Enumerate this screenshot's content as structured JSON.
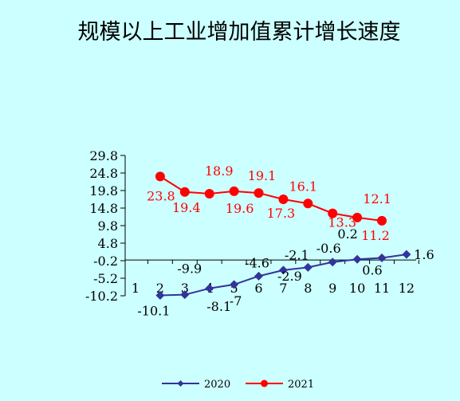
{
  "chart_data": {
    "type": "line",
    "title": "规模以上工业增加值累计增长速度",
    "categories": [
      "1",
      "2",
      "3",
      "4",
      "5",
      "6",
      "7",
      "8",
      "9",
      "10",
      "11",
      "12"
    ],
    "yticks": [
      "29.8",
      "24.8",
      "19.8",
      "14.8",
      "9.8",
      "4.8",
      "-0.2",
      "-5.2",
      "-10.2"
    ],
    "ylim": [
      -10.2,
      29.8
    ],
    "grid": false,
    "legend_position": "bottom",
    "series": [
      {
        "name": "2020",
        "color": "#333399",
        "marker": "diamond",
        "x": [
          "2",
          "3",
          "4",
          "5",
          "6",
          "7",
          "8",
          "9",
          "10",
          "11",
          "12"
        ],
        "values": [
          -10.1,
          -9.9,
          -8.1,
          -7,
          -4.6,
          -2.9,
          -2.1,
          -0.6,
          0.2,
          0.6,
          1.6
        ],
        "labels": [
          "-10.1",
          "-9.9",
          "-8.1",
          "-7",
          "-4.6",
          "-2.9",
          "-2.1",
          "-0.6",
          "0.2",
          "0.6",
          "1.6"
        ]
      },
      {
        "name": "2021",
        "color": "#ff0000",
        "marker": "circle",
        "x": [
          "2",
          "3",
          "4",
          "5",
          "6",
          "7",
          "8",
          "9",
          "10",
          "11"
        ],
        "values": [
          23.8,
          19.4,
          18.9,
          19.6,
          19.1,
          17.3,
          16.1,
          13.3,
          12.1,
          11.2
        ],
        "labels": [
          "23.8",
          "19.4",
          "18.9",
          "19.6",
          "19.1",
          "17.3",
          "16.1",
          "13.3",
          "12.1",
          "11.2"
        ]
      }
    ]
  }
}
